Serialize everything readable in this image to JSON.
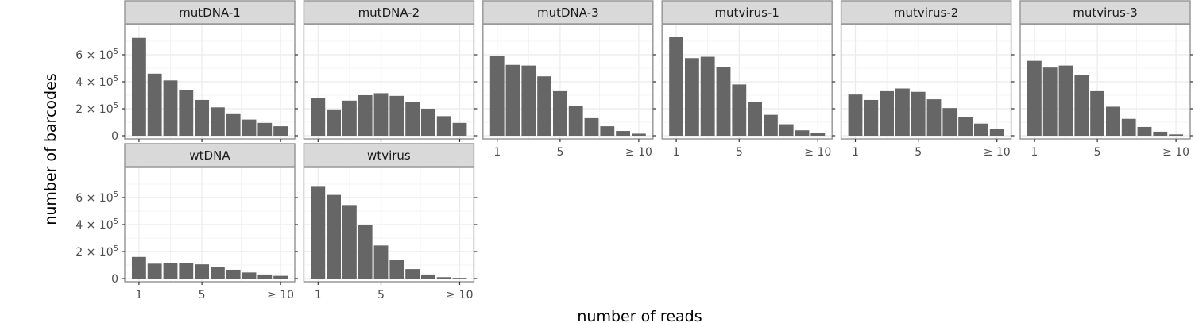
{
  "chart_data": {
    "type": "bar",
    "facet_layout": "wrap",
    "xlabel": "number of reads",
    "ylabel": "number of barcodes",
    "categories": [
      1,
      2,
      3,
      4,
      5,
      6,
      7,
      8,
      9,
      10
    ],
    "x_ticks": [
      1,
      5,
      10
    ],
    "x_tick_labels": [
      "1",
      "5",
      "≥ 10"
    ],
    "ylim": [
      0,
      800000
    ],
    "y_ticks": [
      0,
      200000,
      400000,
      600000
    ],
    "y_tick_labels": [
      "0",
      "2 × 10^5",
      "4 × 10^5",
      "6 × 10^5"
    ],
    "grid": true,
    "colors": {
      "bar": "#666666",
      "strip": "#d9d9d9",
      "frame": "#999999",
      "grid": "#ebebeb"
    },
    "panels": [
      {
        "name": "mutDNA-1",
        "values": [
          725000,
          460000,
          410000,
          340000,
          265000,
          210000,
          160000,
          120000,
          95000,
          70000
        ]
      },
      {
        "name": "mutDNA-2",
        "values": [
          280000,
          195000,
          260000,
          300000,
          315000,
          295000,
          250000,
          200000,
          145000,
          95000
        ]
      },
      {
        "name": "mutDNA-3",
        "values": [
          590000,
          525000,
          520000,
          440000,
          330000,
          220000,
          130000,
          70000,
          35000,
          15000
        ]
      },
      {
        "name": "mutvirus-1",
        "values": [
          730000,
          575000,
          585000,
          510000,
          380000,
          250000,
          155000,
          85000,
          40000,
          20000
        ]
      },
      {
        "name": "mutvirus-2",
        "values": [
          305000,
          265000,
          330000,
          350000,
          325000,
          270000,
          205000,
          140000,
          90000,
          50000
        ]
      },
      {
        "name": "mutvirus-3",
        "values": [
          555000,
          505000,
          520000,
          450000,
          330000,
          215000,
          125000,
          65000,
          30000,
          10000
        ]
      },
      {
        "name": "wtDNA",
        "values": [
          160000,
          110000,
          115000,
          115000,
          105000,
          85000,
          65000,
          45000,
          30000,
          20000
        ]
      },
      {
        "name": "wtvirus",
        "values": [
          680000,
          620000,
          545000,
          400000,
          245000,
          140000,
          70000,
          30000,
          10000,
          5000
        ]
      }
    ]
  }
}
